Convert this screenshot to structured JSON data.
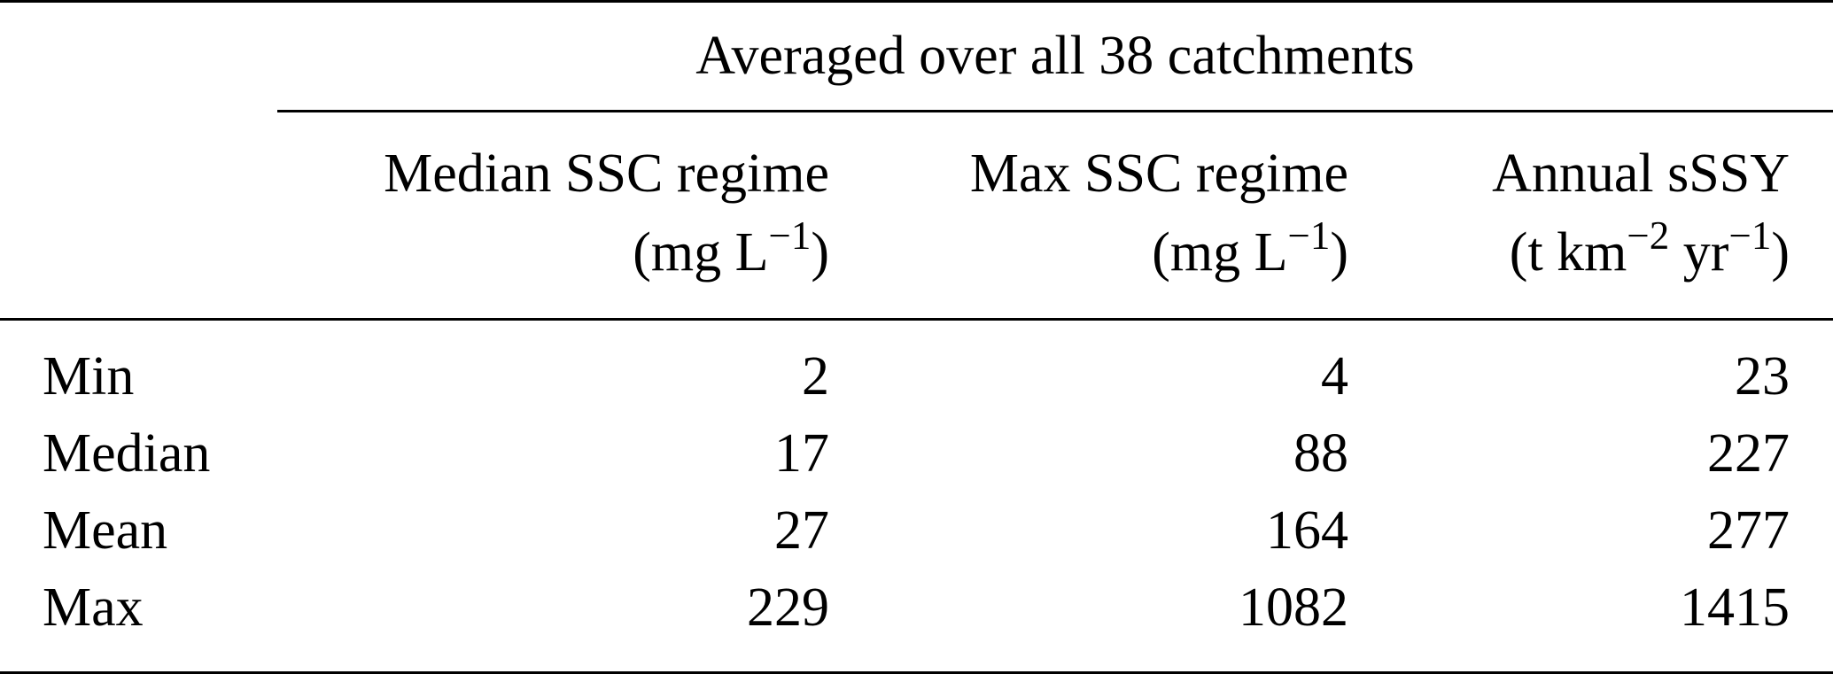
{
  "table": {
    "spanning_header": "Averaged over all 38 catchments",
    "columns": [
      {
        "title": "Median SSC regime",
        "unit_open": "(mg L",
        "unit_exp": "−1",
        "unit_close": ")"
      },
      {
        "title": "Max SSC regime",
        "unit_open": "(mg L",
        "unit_exp": "−1",
        "unit_close": ")"
      },
      {
        "title": "Annual sSSY",
        "unit_open": "(t km",
        "unit_exp": "−2",
        "unit_mid": " yr",
        "unit_exp2": "−1",
        "unit_close": ")"
      }
    ],
    "rows": [
      {
        "label": "Min",
        "values": [
          "2",
          "4",
          "23"
        ]
      },
      {
        "label": "Median",
        "values": [
          "17",
          "88",
          "227"
        ]
      },
      {
        "label": "Mean",
        "values": [
          "27",
          "164",
          "277"
        ]
      },
      {
        "label": "Max",
        "values": [
          "229",
          "1082",
          "1415"
        ]
      }
    ]
  }
}
